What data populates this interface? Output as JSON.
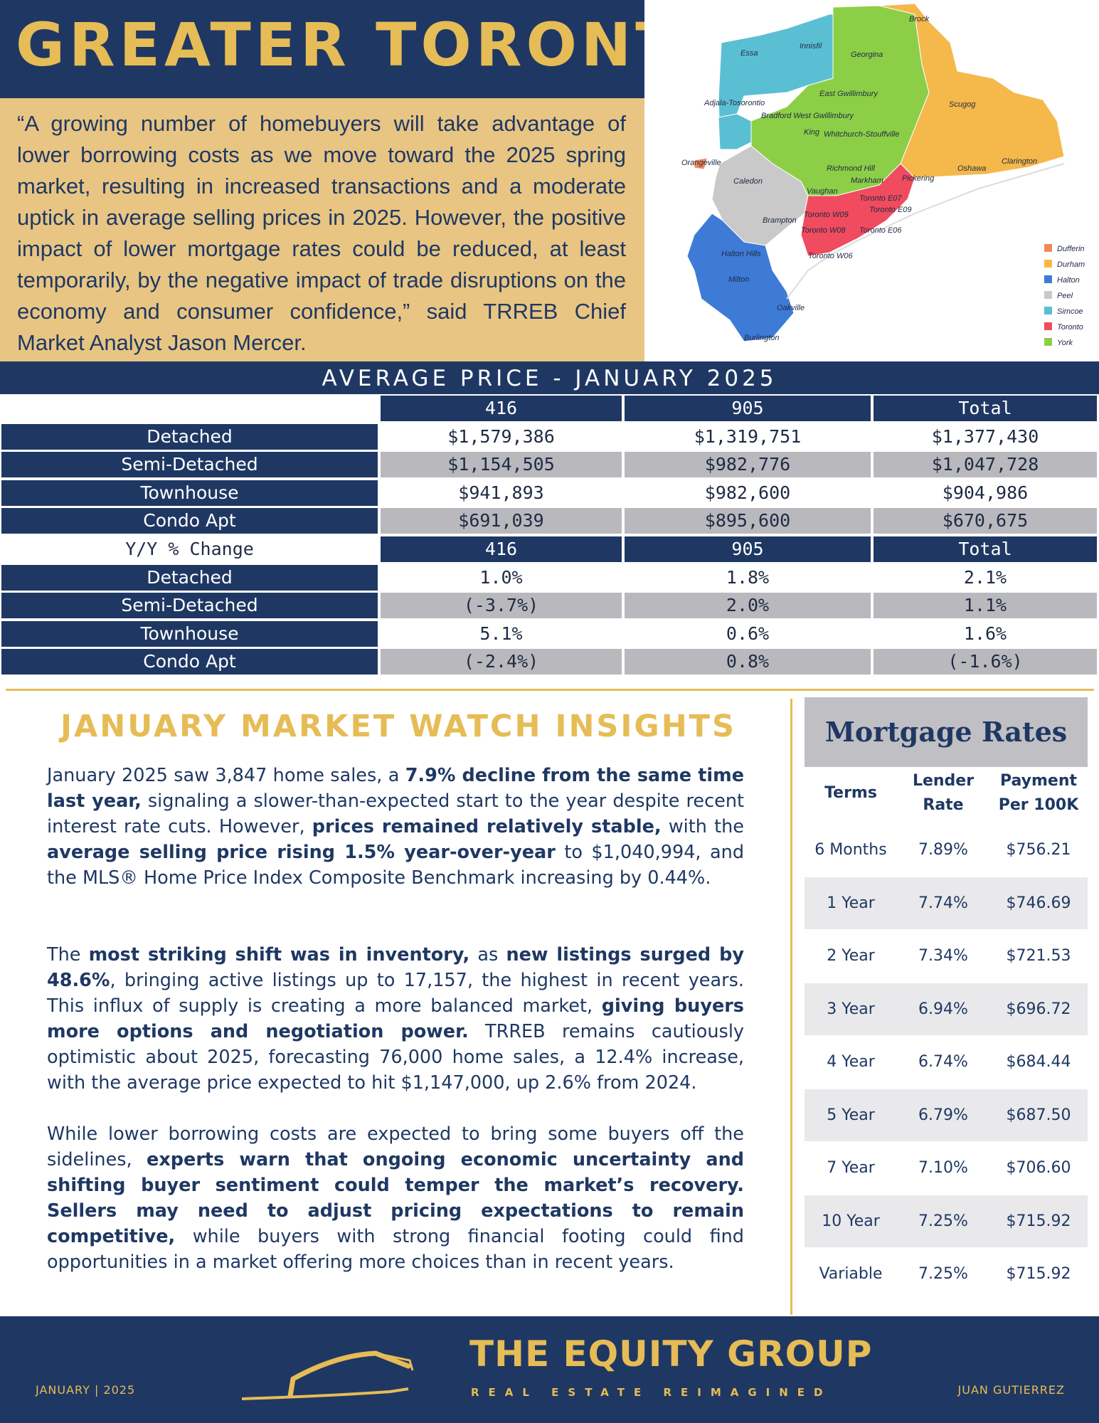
{
  "header": {
    "title": "GREATER TORONTO",
    "quote": "“A growing number of homebuyers will take advantage of lower borrowing costs as we move toward the 2025 spring market, resulting in increased transactions and a moderate uptick in average selling prices in 2025. However, the positive impact of lower mortgage rates could be reduced, at least temporarily, by the negative impact of trade disruptions on the economy and consumer confidence,” said TRREB Chief Market Analyst Jason Mercer."
  },
  "map": {
    "regions": [
      "Essa",
      "Innisfil",
      "Georgina",
      "Brock",
      "Adjala-Tosorontio",
      "East Gwillimbury",
      "Scugog",
      "Bradford West Gwillimbury",
      "King",
      "Whitchurch-Stouffville",
      "Orangeville",
      "Richmond Hill",
      "Caledon",
      "Markham",
      "Pickering",
      "Oshawa",
      "Clarington",
      "Vaughan",
      "Toronto E07",
      "Toronto W09",
      "Toronto E09",
      "Brampton",
      "Toronto W08",
      "Toronto E06",
      "Halton Hills",
      "Toronto W06",
      "Milton",
      "Oakville",
      "Burlington"
    ],
    "legend": [
      {
        "label": "Dufferin",
        "color": "#f2895b"
      },
      {
        "label": "Durham",
        "color": "#f5b84a"
      },
      {
        "label": "Halton",
        "color": "#3e7bd6"
      },
      {
        "label": "Peel",
        "color": "#c9c9c9"
      },
      {
        "label": "Simcoe",
        "color": "#5bbfd3"
      },
      {
        "label": "Toronto",
        "color": "#f04b5e"
      },
      {
        "label": "York",
        "color": "#8ccf47"
      }
    ]
  },
  "price_table": {
    "title": "AVERAGE PRICE - JANUARY 2025",
    "avg_header": [
      "",
      "416",
      "905",
      "Total"
    ],
    "avg_rows": [
      [
        "Detached",
        "$1,579,386",
        "$1,319,751",
        "$1,377,430"
      ],
      [
        "Semi-Detached",
        "$1,154,505",
        "$982,776",
        "$1,047,728"
      ],
      [
        "Townhouse",
        "$941,893",
        "$982,600",
        "$904,986"
      ],
      [
        "Condo Apt",
        "$691,039",
        "$895,600",
        "$670,675"
      ]
    ],
    "yy_header": [
      "Y/Y % Change",
      "416",
      "905",
      "Total"
    ],
    "yy_rows": [
      [
        "Detached",
        "1.0%",
        "1.8%",
        "2.1%"
      ],
      [
        "Semi-Detached",
        "(-3.7%)",
        "2.0%",
        "1.1%"
      ],
      [
        "Townhouse",
        "5.1%",
        "0.6%",
        "1.6%"
      ],
      [
        "Condo Apt",
        "(-2.4%)",
        "0.8%",
        "(-1.6%)"
      ]
    ]
  },
  "insights": {
    "title": "JANUARY MARKET WATCH INSIGHTS",
    "p1": [
      {
        "t": "January 2025 saw 3,847 home sales, a ",
        "b": false
      },
      {
        "t": "7.9% decline from the same time last year,",
        "b": true
      },
      {
        "t": " signaling a slower-than-expected start to the year despite recent interest rate cuts. However, ",
        "b": false
      },
      {
        "t": "prices remained relatively stable,",
        "b": true
      },
      {
        "t": " with the ",
        "b": false
      },
      {
        "t": "average selling price rising 1.5% year-over-year",
        "b": true
      },
      {
        "t": " to $1,040,994, and the MLS® Home Price Index Composite Benchmark increasing by 0.44%.",
        "b": false
      }
    ],
    "p2": [
      {
        "t": "The ",
        "b": false
      },
      {
        "t": "most striking shift was in inventory,",
        "b": true
      },
      {
        "t": " as ",
        "b": false
      },
      {
        "t": "new listings surged by 48.6%",
        "b": true
      },
      {
        "t": ", bringing active listings up to 17,157, the highest in recent years. This influx of supply is creating a more balanced market, ",
        "b": false
      },
      {
        "t": "giving buyers more options and negotiation power.",
        "b": true
      },
      {
        "t": " TRREB remains cautiously optimistic about 2025, forecasting 76,000 home sales, a 12.4% increase, with the average price expected to hit $1,147,000, up 2.6% from 2024.",
        "b": false
      }
    ],
    "p3": [
      {
        "t": "While lower borrowing costs are expected to bring some buyers off the sidelines, ",
        "b": false
      },
      {
        "t": "experts warn that ongoing economic uncertainty and shifting buyer sentiment could temper the market’s recovery. Sellers may need to adjust pricing expectations to remain competitive,",
        "b": true
      },
      {
        "t": " while buyers with strong financial footing could find opportunities in a market offering more choices than in recent years.",
        "b": false
      }
    ]
  },
  "mortgage": {
    "title": "Mortgage Rates",
    "headers": [
      "Terms",
      "Lender Rate",
      "Payment Per 100K"
    ],
    "rows": [
      [
        "6 Months",
        "7.89%",
        "$756.21"
      ],
      [
        "1 Year",
        "7.74%",
        "$746.69"
      ],
      [
        "2 Year",
        "7.34%",
        "$721.53"
      ],
      [
        "3 Year",
        "6.94%",
        "$696.72"
      ],
      [
        "4 Year",
        "6.74%",
        "$684.44"
      ],
      [
        "5 Year",
        "6.79%",
        "$687.50"
      ],
      [
        "7 Year",
        "7.10%",
        "$706.60"
      ],
      [
        "10 Year",
        "7.25%",
        "$715.92"
      ],
      [
        "Variable",
        "7.25%",
        "$715.92"
      ]
    ]
  },
  "footer": {
    "date": "JANUARY | 2025",
    "brand": "THE EQUITY GROUP",
    "tagline": "REAL ESTATE REIMAGINED",
    "agent": "JUAN GUTIERREZ"
  },
  "colors": {
    "navy": "#1f3863",
    "gold": "#e6bc56",
    "tan": "#e8c582",
    "grey": "#b9b8bd"
  }
}
